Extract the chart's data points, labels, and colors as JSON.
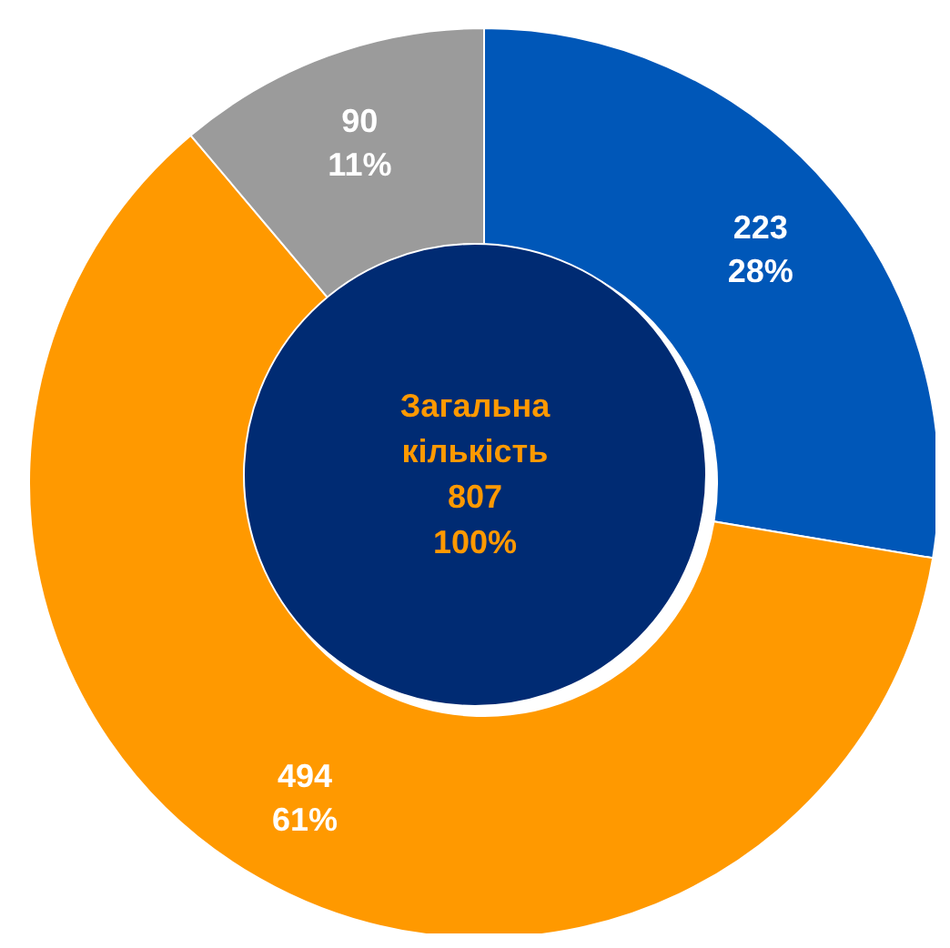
{
  "chart_data": {
    "type": "donut",
    "categories": [
      null,
      null,
      null
    ],
    "values": [
      223,
      494,
      90
    ],
    "colors": [
      "#0057b8",
      "#ff9900",
      "#9b9b9b"
    ],
    "value_labels": [
      "223\n28%",
      "494\n61%",
      "90\n11%"
    ],
    "annotations": [
      "Загальна кількість",
      "807",
      "100%"
    ],
    "legend": false
  }
}
